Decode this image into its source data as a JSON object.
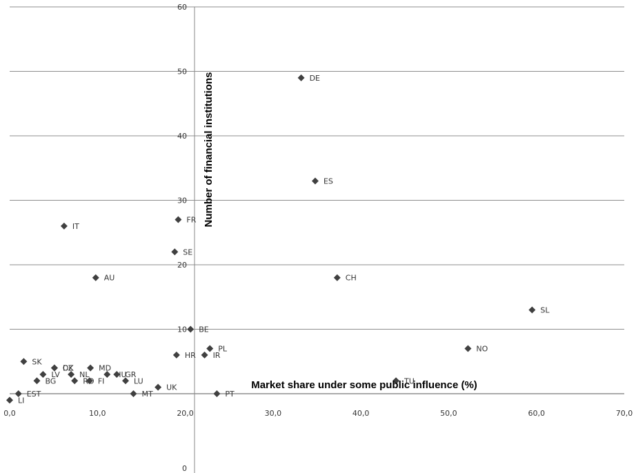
{
  "chart_data": {
    "type": "scatter",
    "xlabel": "Market share under some public influence (%)",
    "ylabel": "Number of financial institutions",
    "xlim": [
      0,
      70
    ],
    "ylim": [
      0,
      60
    ],
    "x_ticks": [
      "0,0",
      "10,0",
      "20,0",
      "30,0",
      "40,0",
      "50,0",
      "60,0",
      "70,0"
    ],
    "y_ticks": [
      "0",
      "10",
      "20",
      "30",
      "40",
      "50",
      "60"
    ],
    "grid": "horizontal",
    "marker": "diamond",
    "marker_color": "#404040",
    "points": [
      {
        "label": "DE",
        "x": 33.2,
        "y": 49
      },
      {
        "label": "ES",
        "x": 34.8,
        "y": 33
      },
      {
        "label": "IT",
        "x": 6.2,
        "y": 26
      },
      {
        "label": "FR",
        "x": 19.2,
        "y": 27
      },
      {
        "label": "SE",
        "x": 18.8,
        "y": 22
      },
      {
        "label": "AU",
        "x": 9.8,
        "y": 18
      },
      {
        "label": "CH",
        "x": 37.3,
        "y": 18
      },
      {
        "label": "SL",
        "x": 59.5,
        "y": 13
      },
      {
        "label": "BE",
        "x": 20.6,
        "y": 10
      },
      {
        "label": "PL",
        "x": 22.8,
        "y": 7
      },
      {
        "label": "HR",
        "x": 19.0,
        "y": 6
      },
      {
        "label": "IR",
        "x": 22.2,
        "y": 6
      },
      {
        "label": "NO",
        "x": 52.2,
        "y": 7
      },
      {
        "label": "SK",
        "x": 1.6,
        "y": 5
      },
      {
        "label": "CZ",
        "x": 5.1,
        "y": 4
      },
      {
        "label": "DK",
        "x": 5.1,
        "y": 4
      },
      {
        "label": "MD",
        "x": 9.2,
        "y": 4
      },
      {
        "label": "LV",
        "x": 3.8,
        "y": 3
      },
      {
        "label": "NL",
        "x": 7.0,
        "y": 3
      },
      {
        "label": "HU",
        "x": 11.1,
        "y": 3
      },
      {
        "label": "GR",
        "x": 12.2,
        "y": 3
      },
      {
        "label": "BG",
        "x": 3.1,
        "y": 2
      },
      {
        "label": "RO",
        "x": 7.4,
        "y": 2
      },
      {
        "label": "FI",
        "x": 9.1,
        "y": 2
      },
      {
        "label": "LU",
        "x": 13.2,
        "y": 2
      },
      {
        "label": "TU",
        "x": 44.0,
        "y": 2
      },
      {
        "label": "UK",
        "x": 16.9,
        "y": 1
      },
      {
        "label": "EST",
        "x": 1.0,
        "y": 0
      },
      {
        "label": "MT",
        "x": 14.1,
        "y": 0
      },
      {
        "label": "PT",
        "x": 23.6,
        "y": 0
      },
      {
        "label": "LI",
        "x": 0.0,
        "y": -1
      }
    ]
  }
}
